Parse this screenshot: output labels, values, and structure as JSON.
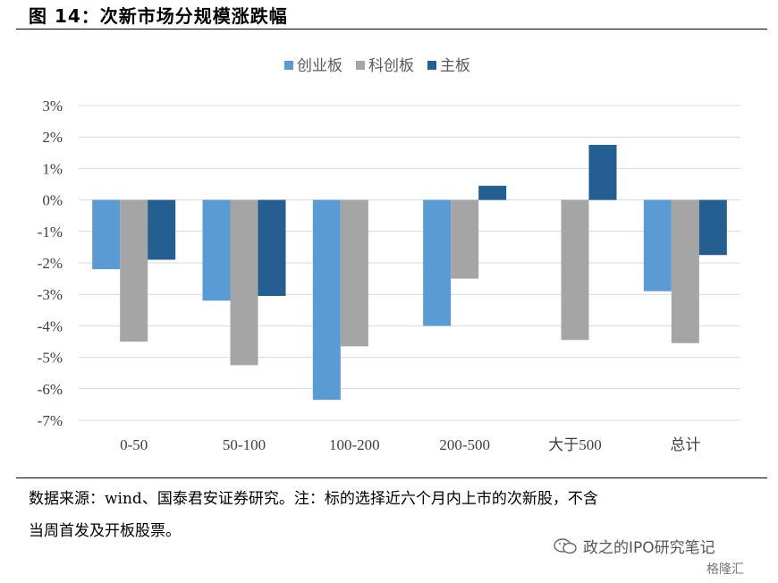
{
  "title": "图 14：次新市场分规模涨跌幅",
  "note_line1": "数据来源：wind、国泰君安证券研究。注：标的选择近六个月内上市的次新股，不含",
  "note_line2": "当周首发及开板股票。",
  "watermark_text": "政之的IPO研究笔记",
  "brand_text": "格隆汇",
  "chart_data": {
    "type": "bar",
    "title": "",
    "xlabel": "",
    "ylabel": "",
    "categories": [
      "0-50",
      "50-100",
      "100-200",
      "200-500",
      "大于500",
      "总计"
    ],
    "series": [
      {
        "name": "创业板",
        "color": "#5b9bd5",
        "values": [
          -2.2,
          -3.2,
          -6.35,
          -4.0,
          null,
          -2.9
        ]
      },
      {
        "name": "科创板",
        "color": "#a5a5a5",
        "values": [
          -4.5,
          -5.25,
          -4.65,
          -2.5,
          -4.45,
          -4.55
        ]
      },
      {
        "name": "主板",
        "color": "#255e91",
        "values": [
          -1.9,
          -3.05,
          null,
          0.45,
          1.75,
          -1.75
        ]
      }
    ],
    "ylim": [
      -7,
      3
    ],
    "yticks": [
      3,
      2,
      1,
      0,
      -1,
      -2,
      -3,
      -4,
      -5,
      -6,
      -7
    ],
    "ytick_labels": [
      "3%",
      "2%",
      "1%",
      "0%",
      "-1%",
      "-2%",
      "-3%",
      "-4%",
      "-5%",
      "-6%",
      "-7%"
    ],
    "grid": true,
    "legend_position": "top-center"
  }
}
